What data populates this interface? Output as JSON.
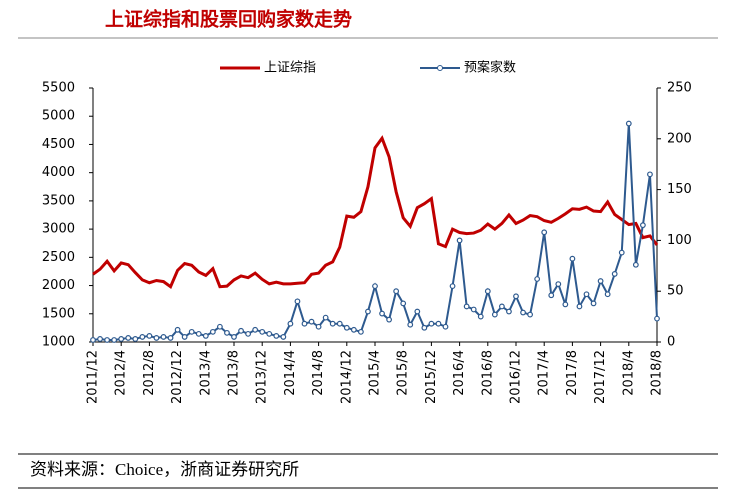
{
  "chart_data": {
    "type": "line",
    "title": "上证综指和股票回购家数走势",
    "source": "资料来源：Choice，浙商证券研究所",
    "categories": [
      "2011/12",
      null,
      null,
      null,
      "2012/4",
      null,
      null,
      null,
      "2012/8",
      null,
      null,
      null,
      "2012/12",
      null,
      null,
      null,
      "2013/4",
      null,
      null,
      null,
      "2013/8",
      null,
      null,
      null,
      "2013/12",
      null,
      null,
      null,
      "2014/4",
      null,
      null,
      null,
      "2014/8",
      null,
      null,
      null,
      "2014/12",
      null,
      null,
      null,
      "2015/4",
      null,
      null,
      null,
      "2015/8",
      null,
      null,
      null,
      "2015/12",
      null,
      null,
      null,
      "2016/4",
      null,
      null,
      null,
      "2016/8",
      null,
      null,
      null,
      "2016/12",
      null,
      null,
      null,
      "2017/4",
      null,
      null,
      null,
      "2017/8",
      null,
      null,
      null,
      "2017/12",
      null,
      null,
      null,
      "2018/4",
      null,
      null,
      null,
      "2018/8"
    ],
    "series": [
      {
        "name": "上证综指",
        "color": "#c00000",
        "values": [
          2200,
          2290,
          2430,
          2260,
          2400,
          2370,
          2230,
          2100,
          2050,
          2090,
          2070,
          1980,
          2270,
          2390,
          2360,
          2240,
          2180,
          2300,
          1980,
          1990,
          2100,
          2170,
          2140,
          2220,
          2110,
          2030,
          2060,
          2030,
          2030,
          2040,
          2050,
          2200,
          2220,
          2360,
          2420,
          2680,
          3230,
          3210,
          3310,
          3750,
          4440,
          4610,
          4280,
          3660,
          3200,
          3050,
          3380,
          3450,
          3540,
          2740,
          2690,
          3000,
          2940,
          2920,
          2930,
          2980,
          3090,
          3000,
          3100,
          3250,
          3100,
          3160,
          3240,
          3220,
          3150,
          3120,
          3190,
          3270,
          3360,
          3350,
          3390,
          3320,
          3310,
          3480,
          3260,
          3170,
          3080,
          3100,
          2850,
          2880,
          2720
        ]
      },
      {
        "name": "预案家数",
        "color": "#2e5a8f",
        "axis": "y2",
        "values": [
          2,
          3,
          2,
          2,
          3,
          4,
          3,
          5,
          6,
          4,
          5,
          4,
          12,
          5,
          10,
          8,
          6,
          10,
          15,
          9,
          5,
          11,
          8,
          12,
          10,
          8,
          6,
          5,
          18,
          40,
          18,
          20,
          15,
          24,
          18,
          18,
          14,
          12,
          10,
          30,
          55,
          28,
          22,
          50,
          38,
          17,
          30,
          14,
          18,
          18,
          15,
          55,
          100,
          35,
          32,
          25,
          50,
          27,
          35,
          30,
          45,
          29,
          27,
          62,
          108,
          46,
          57,
          37,
          82,
          35,
          47,
          38,
          60,
          47,
          67,
          88,
          215,
          76,
          115,
          165,
          23
        ]
      }
    ],
    "ylim": [
      1000,
      5500
    ],
    "yticks": [
      1000,
      1500,
      2000,
      2500,
      3000,
      3500,
      4000,
      4500,
      5000,
      5500
    ],
    "y2lim": [
      0,
      250
    ],
    "y2ticks": [
      0,
      50,
      100,
      150,
      200,
      250
    ],
    "legend": "top"
  }
}
